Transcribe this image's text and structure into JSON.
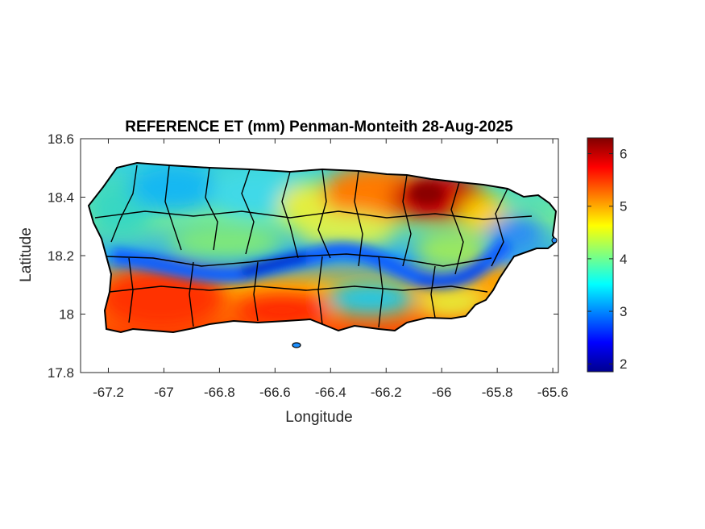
{
  "chart_data": {
    "type": "heatmap",
    "title": "REFERENCE ET (mm) Penman-Monteith 28-Aug-2025",
    "xlabel": "Longitude",
    "ylabel": "Latitude",
    "xlim": [
      -67.3,
      -65.58
    ],
    "ylim": [
      17.8,
      18.6
    ],
    "xticks": [
      -67.2,
      -67.0,
      -66.8,
      -66.6,
      -66.4,
      -66.2,
      -66.0,
      -65.8,
      -65.6
    ],
    "xtick_labels": [
      "-67.2",
      "-67",
      "-66.8",
      "-66.6",
      "-66.4",
      "-66.2",
      "-66",
      "-65.8",
      "-65.6"
    ],
    "yticks": [
      17.8,
      18.0,
      18.2,
      18.4,
      18.6
    ],
    "ytick_labels": [
      "17.8",
      "18",
      "18.2",
      "18.4",
      "18.6"
    ],
    "colormap": "jet",
    "colorbar": {
      "min": 1.85,
      "max": 6.3,
      "ticks": [
        2,
        3,
        4,
        5,
        6
      ],
      "tick_labels": [
        "2",
        "3",
        "4",
        "5",
        "6"
      ]
    },
    "grid": false
  }
}
